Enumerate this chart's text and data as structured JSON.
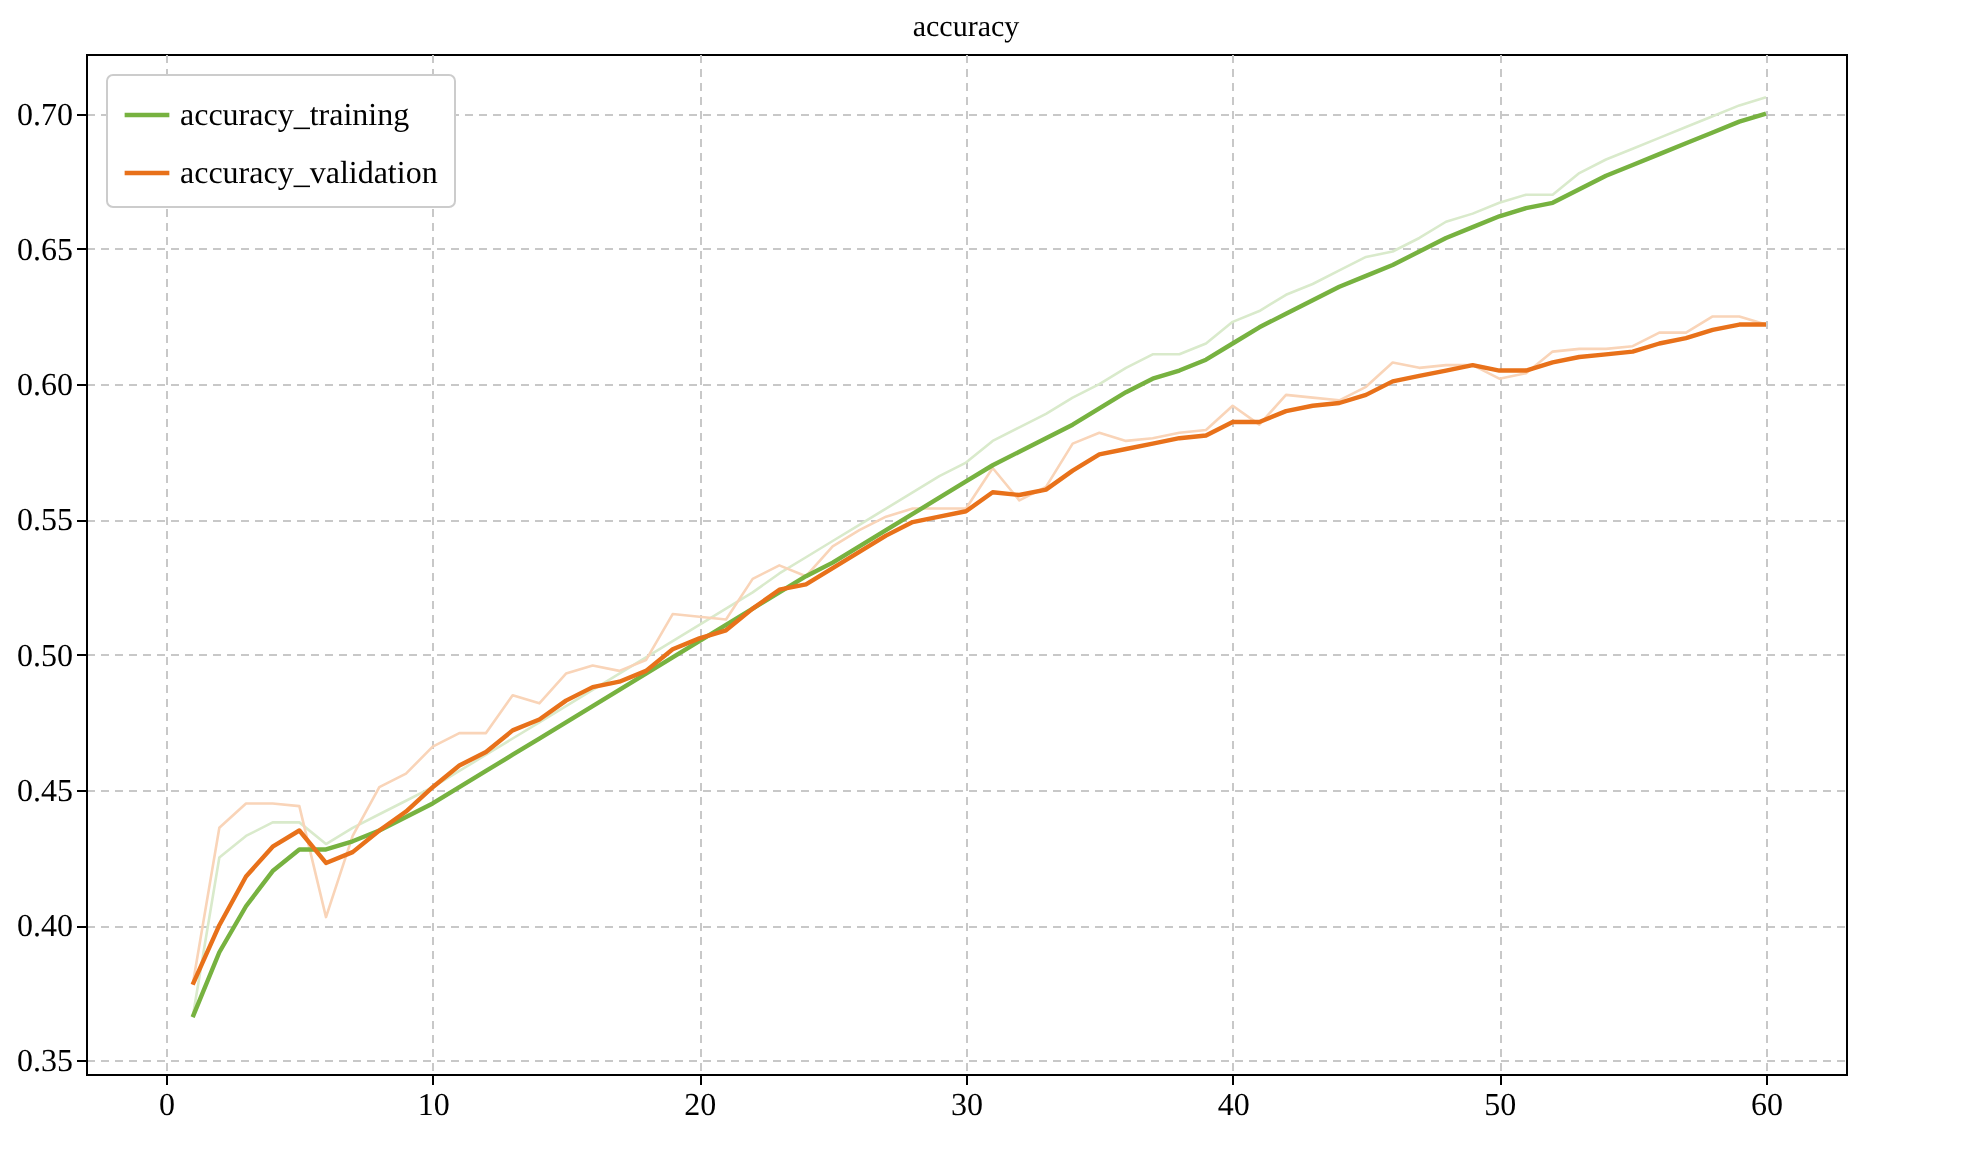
{
  "chart_data": {
    "type": "line",
    "title": "accuracy",
    "x": [
      1,
      2,
      3,
      4,
      5,
      6,
      7,
      8,
      9,
      10,
      11,
      12,
      13,
      14,
      15,
      16,
      17,
      18,
      19,
      20,
      21,
      22,
      23,
      24,
      25,
      26,
      27,
      28,
      29,
      30,
      31,
      32,
      33,
      34,
      35,
      36,
      37,
      38,
      39,
      40,
      41,
      42,
      43,
      44,
      45,
      46,
      47,
      48,
      49,
      50,
      51,
      52,
      53,
      54,
      55,
      56,
      57,
      58,
      59,
      60
    ],
    "series": [
      {
        "color": "#d9eacb",
        "values": [
          0.366,
          0.425,
          0.433,
          0.438,
          0.438,
          0.43,
          0.436,
          0.441,
          0.446,
          0.451,
          0.457,
          0.463,
          0.469,
          0.475,
          0.481,
          0.487,
          0.493,
          0.499,
          0.505,
          0.511,
          0.517,
          0.523,
          0.53,
          0.536,
          0.542,
          0.548,
          0.554,
          0.56,
          0.566,
          0.571,
          0.579,
          0.584,
          0.589,
          0.595,
          0.6,
          0.606,
          0.611,
          0.611,
          0.615,
          0.623,
          0.627,
          0.633,
          0.637,
          0.642,
          0.647,
          0.649,
          0.654,
          0.66,
          0.663,
          0.667,
          0.67,
          0.67,
          0.678,
          0.683,
          0.687,
          0.691,
          0.695,
          0.699,
          0.703,
          0.706
        ]
      },
      {
        "color": "#f9d4b8",
        "values": [
          0.378,
          0.436,
          0.445,
          0.445,
          0.444,
          0.403,
          0.433,
          0.451,
          0.456,
          0.466,
          0.471,
          0.471,
          0.485,
          0.482,
          0.493,
          0.496,
          0.494,
          0.498,
          0.515,
          0.514,
          0.513,
          0.528,
          0.533,
          0.529,
          0.54,
          0.546,
          0.551,
          0.554,
          0.554,
          0.554,
          0.569,
          0.557,
          0.562,
          0.578,
          0.582,
          0.579,
          0.58,
          0.582,
          0.583,
          0.592,
          0.585,
          0.596,
          0.595,
          0.594,
          0.599,
          0.608,
          0.606,
          0.607,
          0.607,
          0.602,
          0.604,
          0.612,
          0.613,
          0.613,
          0.614,
          0.619,
          0.619,
          0.625,
          0.625,
          0.622
        ]
      },
      {
        "name": "accuracy_training",
        "color": "#77b240",
        "values": [
          0.366,
          0.39,
          0.407,
          0.42,
          0.428,
          0.428,
          0.431,
          0.435,
          0.44,
          0.445,
          0.451,
          0.457,
          0.463,
          0.469,
          0.475,
          0.481,
          0.487,
          0.493,
          0.499,
          0.505,
          0.511,
          0.517,
          0.523,
          0.529,
          0.534,
          0.54,
          0.546,
          0.552,
          0.558,
          0.564,
          0.57,
          0.575,
          0.58,
          0.585,
          0.591,
          0.597,
          0.602,
          0.605,
          0.609,
          0.615,
          0.621,
          0.626,
          0.631,
          0.636,
          0.64,
          0.644,
          0.649,
          0.654,
          0.658,
          0.662,
          0.665,
          0.667,
          0.672,
          0.677,
          0.681,
          0.685,
          0.689,
          0.693,
          0.697,
          0.7
        ]
      },
      {
        "name": "accuracy_validation",
        "color": "#e8711a",
        "values": [
          0.378,
          0.4,
          0.418,
          0.429,
          0.435,
          0.423,
          0.427,
          0.435,
          0.442,
          0.451,
          0.459,
          0.464,
          0.472,
          0.476,
          0.483,
          0.488,
          0.49,
          0.494,
          0.502,
          0.506,
          0.509,
          0.517,
          0.524,
          0.526,
          0.532,
          0.538,
          0.544,
          0.549,
          0.551,
          0.553,
          0.56,
          0.559,
          0.561,
          0.568,
          0.574,
          0.576,
          0.578,
          0.58,
          0.581,
          0.586,
          0.586,
          0.59,
          0.592,
          0.593,
          0.596,
          0.601,
          0.603,
          0.605,
          0.607,
          0.605,
          0.605,
          0.608,
          0.61,
          0.611,
          0.612,
          0.615,
          0.617,
          0.62,
          0.622,
          0.622
        ]
      }
    ],
    "xlim": [
      -3,
      63
    ],
    "xticks": [
      0,
      10,
      20,
      30,
      40,
      50,
      60
    ],
    "ylim": [
      0.345,
      0.722
    ],
    "yticks": [
      0.35,
      {
        "value": 0.4,
        "label": "0.40"
      },
      0.45,
      {
        "value": 0.5,
        "label": "0.50"
      },
      0.55,
      {
        "value": 0.6,
        "label": "0.60"
      },
      0.65,
      {
        "value": 0.7,
        "label": "0.70"
      }
    ],
    "grid": true,
    "legend": "top left",
    "marker": "none",
    "line_style": "solid"
  }
}
